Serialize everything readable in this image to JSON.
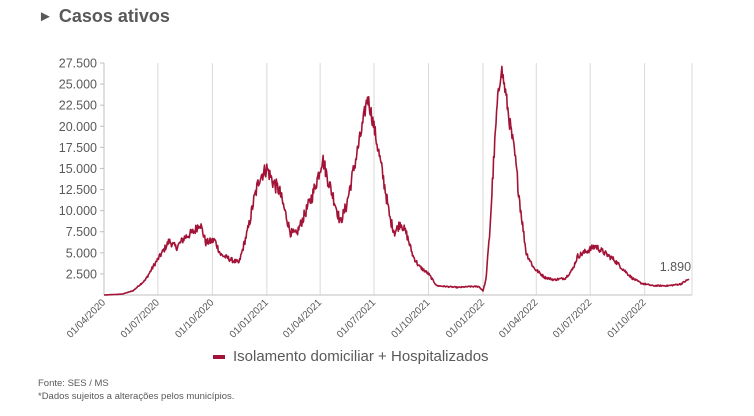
{
  "header": {
    "title": "Casos ativos",
    "marker": "►"
  },
  "colors": {
    "series": "#a31337",
    "grid": "#d9d9d9",
    "axis": "#595959"
  },
  "legend": {
    "label": "Isolamento domiciliar + Hospitalizados"
  },
  "footer": {
    "source": "Fonte: SES / MS",
    "note": "*Dados sujeitos a alterações pelos municípios."
  },
  "chart_data": {
    "type": "line",
    "ylim": [
      0,
      27500
    ],
    "yticks": [
      "27.500",
      "25.000",
      "22.500",
      "20.000",
      "17.500",
      "15.000",
      "12.500",
      "10.000",
      "7.500",
      "5.000",
      "2.500"
    ],
    "ytick_values": [
      27500,
      25000,
      22500,
      20000,
      17500,
      15000,
      12500,
      10000,
      7500,
      5000,
      2500
    ],
    "xlim": [
      "2020-04-01",
      "2022-12-20"
    ],
    "xticks": [
      "01/04/2020",
      "01/07/2020",
      "01/10/2020",
      "01/01/2021",
      "01/04/2021",
      "01/07/2021",
      "01/10/2021",
      "01/01/2022",
      "01/04/2022",
      "01/07/2022",
      "01/10/2022"
    ],
    "xtick_dates": [
      "2020-04-01",
      "2020-07-01",
      "2020-10-01",
      "2021-01-01",
      "2021-04-01",
      "2021-07-01",
      "2021-10-01",
      "2022-01-01",
      "2022-04-01",
      "2022-07-01",
      "2022-10-01"
    ],
    "end_label": "1.890",
    "grid": "vertical",
    "legend_position": "bottom",
    "series": [
      {
        "name": "Isolamento domiciliar + Hospitalizados",
        "points": [
          [
            "2020-04-01",
            0
          ],
          [
            "2020-05-01",
            100
          ],
          [
            "2020-05-20",
            500
          ],
          [
            "2020-06-10",
            1800
          ],
          [
            "2020-06-25",
            3600
          ],
          [
            "2020-07-10",
            5200
          ],
          [
            "2020-07-20",
            6400
          ],
          [
            "2020-08-01",
            5600
          ],
          [
            "2020-08-15",
            6800
          ],
          [
            "2020-09-01",
            7600
          ],
          [
            "2020-09-10",
            8600
          ],
          [
            "2020-09-20",
            6200
          ],
          [
            "2020-10-05",
            6500
          ],
          [
            "2020-10-15",
            4800
          ],
          [
            "2020-11-01",
            4200
          ],
          [
            "2020-11-15",
            3800
          ],
          [
            "2020-12-01",
            8000
          ],
          [
            "2020-12-10",
            11200
          ],
          [
            "2020-12-20",
            14000
          ],
          [
            "2021-01-01",
            15000
          ],
          [
            "2021-01-12",
            13300
          ],
          [
            "2021-01-22",
            12400
          ],
          [
            "2021-02-01",
            9800
          ],
          [
            "2021-02-10",
            7400
          ],
          [
            "2021-02-20",
            7200
          ],
          [
            "2021-03-05",
            9400
          ],
          [
            "2021-03-20",
            12000
          ],
          [
            "2021-04-01",
            15000
          ],
          [
            "2021-04-05",
            16200
          ],
          [
            "2021-04-15",
            13500
          ],
          [
            "2021-04-25",
            11200
          ],
          [
            "2021-05-05",
            8600
          ],
          [
            "2021-05-15",
            10500
          ],
          [
            "2021-05-28",
            15000
          ],
          [
            "2021-06-10",
            19500
          ],
          [
            "2021-06-20",
            23500
          ],
          [
            "2021-06-28",
            21000
          ],
          [
            "2021-07-10",
            16500
          ],
          [
            "2021-07-20",
            12500
          ],
          [
            "2021-07-28",
            9000
          ],
          [
            "2021-08-05",
            7400
          ],
          [
            "2021-08-15",
            8600
          ],
          [
            "2021-08-25",
            7200
          ],
          [
            "2021-09-05",
            4600
          ],
          [
            "2021-09-15",
            3400
          ],
          [
            "2021-10-01",
            2500
          ],
          [
            "2021-10-15",
            1100
          ],
          [
            "2021-11-01",
            1000
          ],
          [
            "2021-11-20",
            900
          ],
          [
            "2021-12-10",
            1000
          ],
          [
            "2021-12-25",
            1000
          ],
          [
            "2022-01-01",
            500
          ],
          [
            "2022-01-06",
            1800
          ],
          [
            "2022-01-12",
            7000
          ],
          [
            "2022-01-18",
            14500
          ],
          [
            "2022-01-25",
            22500
          ],
          [
            "2022-02-01",
            27000
          ],
          [
            "2022-02-08",
            24000
          ],
          [
            "2022-02-15",
            20500
          ],
          [
            "2022-02-24",
            16500
          ],
          [
            "2022-03-05",
            10500
          ],
          [
            "2022-03-15",
            5000
          ],
          [
            "2022-03-28",
            3200
          ],
          [
            "2022-04-15",
            2100
          ],
          [
            "2022-05-01",
            1800
          ],
          [
            "2022-05-20",
            2000
          ],
          [
            "2022-06-01",
            3000
          ],
          [
            "2022-06-10",
            4600
          ],
          [
            "2022-06-25",
            5200
          ],
          [
            "2022-07-10",
            5800
          ],
          [
            "2022-07-25",
            5000
          ],
          [
            "2022-08-10",
            4200
          ],
          [
            "2022-08-25",
            3100
          ],
          [
            "2022-09-10",
            2000
          ],
          [
            "2022-09-25",
            1400
          ],
          [
            "2022-10-15",
            1100
          ],
          [
            "2022-11-10",
            1100
          ],
          [
            "2022-12-01",
            1300
          ],
          [
            "2022-12-15",
            1890
          ]
        ]
      }
    ]
  }
}
